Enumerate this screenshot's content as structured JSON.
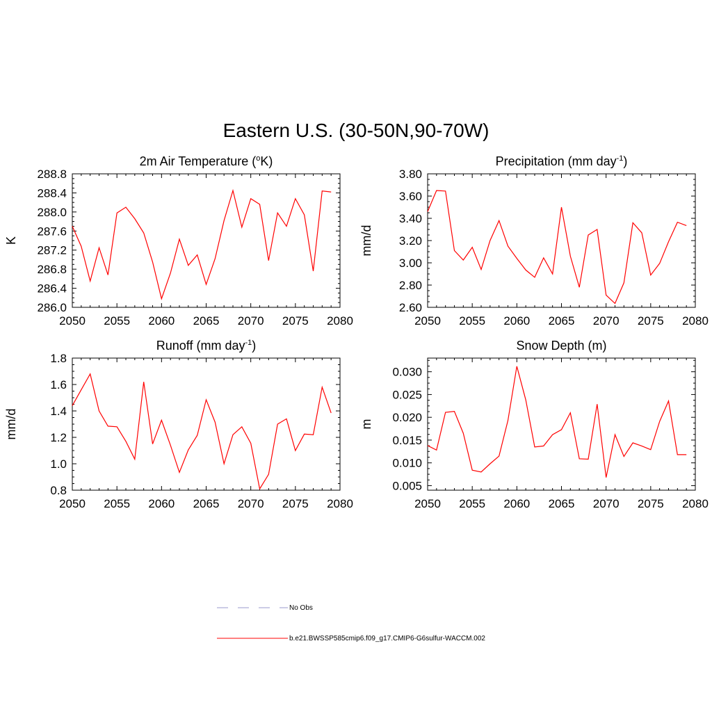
{
  "figure": {
    "title": "Eastern U.S. (30-50N,90-70W)"
  },
  "legend": {
    "entries": [
      {
        "name": "No Obs",
        "color": "#9999cc",
        "dash": "dashed"
      },
      {
        "name": "b.e21.BWSSP585cmip6.f09_g17.CMIP6-G6sulfur-WACCM.002",
        "color": "#ff0000",
        "dash": "solid"
      }
    ]
  },
  "chart_data": [
    {
      "type": "line",
      "title": "2m Air Temperature (",
      "title_sup": "o",
      "title_post": "K)",
      "ylabel": "K",
      "xlim": [
        2050,
        2080
      ],
      "ylim": [
        286.0,
        288.8
      ],
      "xticks": [
        2050,
        2055,
        2060,
        2065,
        2070,
        2075,
        2080
      ],
      "yticks": [
        "286.0",
        "286.4",
        "286.8",
        "287.2",
        "287.6",
        "288.0",
        "288.4",
        "288.8"
      ],
      "series": [
        {
          "color": "#ff0000",
          "x": [
            2050,
            2051,
            2052,
            2053,
            2054,
            2055,
            2056,
            2057,
            2058,
            2059,
            2060,
            2061,
            2062,
            2063,
            2064,
            2065,
            2066,
            2067,
            2068,
            2069,
            2070,
            2071,
            2072,
            2073,
            2074,
            2075,
            2076,
            2077,
            2078,
            2079
          ],
          "y": [
            287.7,
            287.28,
            286.55,
            287.25,
            286.68,
            287.98,
            288.1,
            287.86,
            287.56,
            286.95,
            286.18,
            286.72,
            287.43,
            286.88,
            287.1,
            286.48,
            287.02,
            287.82,
            288.45,
            287.68,
            288.28,
            288.16,
            286.98,
            287.98,
            287.7,
            288.28,
            287.94,
            286.76,
            288.44,
            288.42
          ]
        }
      ]
    },
    {
      "type": "line",
      "title": "Precipitation (mm day",
      "title_sup": "-1",
      "title_post": ")",
      "ylabel": "mm/d",
      "xlim": [
        2050,
        2080
      ],
      "ylim": [
        2.6,
        3.8
      ],
      "xticks": [
        2050,
        2055,
        2060,
        2065,
        2070,
        2075,
        2080
      ],
      "yticks": [
        "2.60",
        "2.80",
        "3.00",
        "3.20",
        "3.40",
        "3.60",
        "3.80"
      ],
      "series": [
        {
          "color": "#ff0000",
          "x": [
            2050,
            2051,
            2052,
            2053,
            2054,
            2055,
            2056,
            2057,
            2058,
            2059,
            2060,
            2061,
            2062,
            2063,
            2064,
            2065,
            2066,
            2067,
            2068,
            2069,
            2070,
            2071,
            2072,
            2073,
            2074,
            2075,
            2076,
            2077,
            2078,
            2079
          ],
          "y": [
            3.46,
            3.65,
            3.645,
            3.11,
            3.025,
            3.14,
            2.94,
            3.2,
            3.38,
            3.15,
            3.04,
            2.935,
            2.87,
            3.045,
            2.9,
            3.5,
            3.06,
            2.78,
            3.25,
            3.3,
            2.71,
            2.635,
            2.82,
            3.36,
            3.27,
            2.89,
            2.995,
            3.19,
            3.365,
            3.335
          ]
        }
      ]
    },
    {
      "type": "line",
      "title": "Runoff (mm day",
      "title_sup": "-1",
      "title_post": ")",
      "ylabel": "mm/d",
      "xlim": [
        2050,
        2080
      ],
      "ylim": [
        0.8,
        1.8
      ],
      "xticks": [
        2050,
        2055,
        2060,
        2065,
        2070,
        2075,
        2080
      ],
      "yticks": [
        "0.8",
        "1.0",
        "1.2",
        "1.4",
        "1.6",
        "1.8"
      ],
      "series": [
        {
          "color": "#ff0000",
          "x": [
            2050,
            2051,
            2052,
            2053,
            2054,
            2055,
            2056,
            2057,
            2058,
            2059,
            2060,
            2061,
            2062,
            2063,
            2064,
            2065,
            2066,
            2067,
            2068,
            2069,
            2070,
            2071,
            2072,
            2073,
            2074,
            2075,
            2076,
            2077,
            2078,
            2079
          ],
          "y": [
            1.44,
            1.56,
            1.68,
            1.4,
            1.285,
            1.28,
            1.17,
            1.035,
            1.62,
            1.15,
            1.33,
            1.14,
            0.935,
            1.105,
            1.215,
            1.485,
            1.315,
            1.0,
            1.22,
            1.28,
            1.155,
            0.81,
            0.92,
            1.3,
            1.34,
            1.1,
            1.225,
            1.22,
            1.58,
            1.385
          ]
        }
      ]
    },
    {
      "type": "line",
      "title": "Snow Depth (m)",
      "title_sup": "",
      "title_post": "",
      "ylabel": "m",
      "xlim": [
        2050,
        2080
      ],
      "ylim": [
        0.004,
        0.033
      ],
      "xticks": [
        2050,
        2055,
        2060,
        2065,
        2070,
        2075,
        2080
      ],
      "yticks": [
        "0.005",
        "0.010",
        "0.015",
        "0.020",
        "0.025",
        "0.030"
      ],
      "series": [
        {
          "color": "#ff0000",
          "x": [
            2050,
            2051,
            2052,
            2053,
            2054,
            2055,
            2056,
            2057,
            2058,
            2059,
            2060,
            2061,
            2062,
            2063,
            2064,
            2065,
            2066,
            2067,
            2068,
            2069,
            2070,
            2071,
            2072,
            2073,
            2074,
            2075,
            2076,
            2077,
            2078,
            2079
          ],
          "y": [
            0.0138,
            0.0128,
            0.0211,
            0.0213,
            0.0165,
            0.0084,
            0.008,
            0.0098,
            0.0115,
            0.0193,
            0.0312,
            0.0238,
            0.0135,
            0.0137,
            0.0162,
            0.0173,
            0.021,
            0.0109,
            0.0108,
            0.0229,
            0.0068,
            0.0162,
            0.0114,
            0.0144,
            0.0137,
            0.0129,
            0.0191,
            0.0236,
            0.0118,
            0.0118
          ]
        }
      ]
    }
  ]
}
